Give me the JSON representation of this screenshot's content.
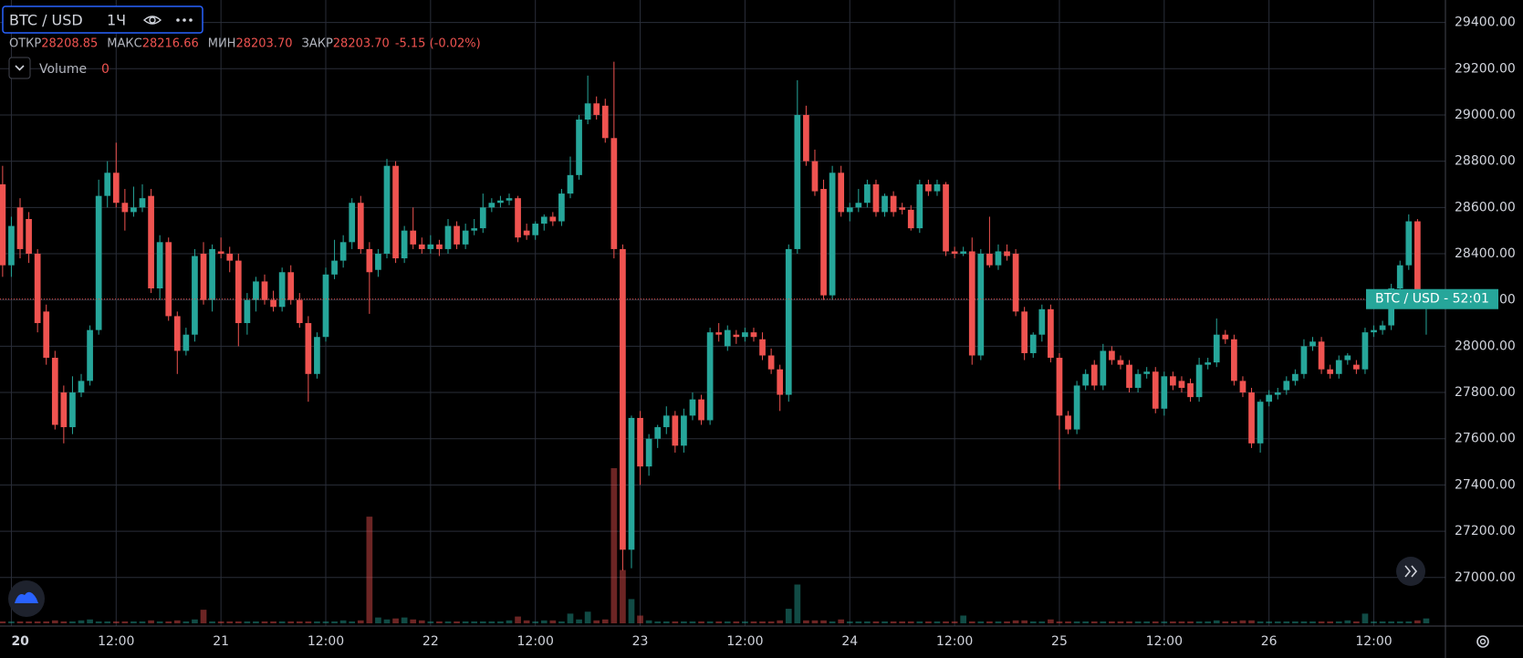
{
  "chart_data": {
    "type": "candlestick",
    "title": "BTC / USD",
    "interval": "1Ч",
    "legend_labels": [
      "ОТКР",
      "МАКС",
      "МИН",
      "ЗАКР"
    ],
    "legend_values": [
      "28208.85",
      "28216.66",
      "28203.70",
      "28203.70"
    ],
    "change": "-5.15 (-0.02%)",
    "volume_label": "Volume",
    "price_tag": "BTC / USD - 52:01",
    "up_color": "#26a69a",
    "down_color": "#ef5350",
    "grid": true,
    "ylim": [
      26790,
      29497
    ],
    "yticks": [
      {
        "value": 27000,
        "label": "27000.00"
      },
      {
        "value": 27200,
        "label": "27200.00"
      },
      {
        "value": 27400,
        "label": "27400.00"
      },
      {
        "value": 27600,
        "label": "27600.00"
      },
      {
        "value": 27800,
        "label": "27800.00"
      },
      {
        "value": 28000,
        "label": "28000.00"
      },
      {
        "value": 28200,
        "label": "28200.00"
      },
      {
        "value": 28400,
        "label": "28400.00"
      },
      {
        "value": 28600,
        "label": "28600.00"
      },
      {
        "value": 28800,
        "label": "28800.00"
      },
      {
        "value": 29000,
        "label": "29000.00"
      },
      {
        "value": 29200,
        "label": "29200.00"
      },
      {
        "value": 29400,
        "label": "29400.00"
      }
    ],
    "xlim": [
      -0.3,
      165.2
    ],
    "xticks": [
      {
        "value": 1,
        "label": "20"
      },
      {
        "value": 13,
        "label": "12:00"
      },
      {
        "value": 25,
        "label": "21"
      },
      {
        "value": 37,
        "label": "12:00"
      },
      {
        "value": 49,
        "label": "22"
      },
      {
        "value": 61,
        "label": "12:00"
      },
      {
        "value": 73,
        "label": "23"
      },
      {
        "value": 85,
        "label": "12:00"
      },
      {
        "value": 97,
        "label": "24"
      },
      {
        "value": 109,
        "label": "12:00"
      },
      {
        "value": 121,
        "label": "25"
      },
      {
        "value": 133,
        "label": "12:00"
      },
      {
        "value": 145,
        "label": "26"
      },
      {
        "value": 157,
        "label": "12:00"
      }
    ],
    "candles": [
      [
        28700,
        28780,
        28300,
        28350
      ],
      [
        28350,
        28560,
        28300,
        28520
      ],
      [
        28600,
        28640,
        28380,
        28420
      ],
      [
        28550,
        28580,
        28360,
        28400
      ],
      [
        28400,
        28420,
        28060,
        28100
      ],
      [
        28150,
        28180,
        27920,
        27950
      ],
      [
        27950,
        27980,
        27640,
        27660
      ],
      [
        27800,
        27830,
        27580,
        27650
      ],
      [
        27650,
        27870,
        27620,
        27800
      ],
      [
        27800,
        27880,
        27780,
        27850
      ],
      [
        27850,
        28090,
        27830,
        28070
      ],
      [
        28070,
        28720,
        28050,
        28650
      ],
      [
        28650,
        28800,
        28600,
        28750
      ],
      [
        28750,
        28880,
        28600,
        28620
      ],
      [
        28620,
        28680,
        28500,
        28580
      ],
      [
        28580,
        28690,
        28560,
        28600
      ],
      [
        28600,
        28700,
        28580,
        28640
      ],
      [
        28650,
        28680,
        28230,
        28250
      ],
      [
        28250,
        28480,
        28200,
        28450
      ],
      [
        28450,
        28470,
        28110,
        28130
      ],
      [
        28130,
        28150,
        27880,
        27980
      ],
      [
        27980,
        28080,
        27960,
        28050
      ],
      [
        28050,
        28420,
        28020,
        28390
      ],
      [
        28400,
        28450,
        28180,
        28200
      ],
      [
        28200,
        28440,
        28150,
        28420
      ],
      [
        28410,
        28470,
        28380,
        28400
      ],
      [
        28400,
        28430,
        28320,
        28370
      ],
      [
        28370,
        28400,
        28000,
        28100
      ],
      [
        28100,
        28230,
        28050,
        28200
      ],
      [
        28200,
        28300,
        28150,
        28280
      ],
      [
        28280,
        28310,
        28180,
        28200
      ],
      [
        28200,
        28240,
        28150,
        28170
      ],
      [
        28170,
        28340,
        28150,
        28320
      ],
      [
        28320,
        28350,
        28180,
        28200
      ],
      [
        28200,
        28230,
        28080,
        28100
      ],
      [
        28100,
        28130,
        27760,
        27880
      ],
      [
        27880,
        28060,
        27860,
        28040
      ],
      [
        28040,
        28340,
        28020,
        28310
      ],
      [
        28310,
        28460,
        28290,
        28370
      ],
      [
        28370,
        28480,
        28340,
        28450
      ],
      [
        28450,
        28640,
        28420,
        28620
      ],
      [
        28620,
        28650,
        28400,
        28420
      ],
      [
        28420,
        28450,
        28140,
        28320
      ],
      [
        28330,
        28420,
        28300,
        28400
      ],
      [
        28400,
        28810,
        28380,
        28780
      ],
      [
        28780,
        28800,
        28360,
        28380
      ],
      [
        28380,
        28520,
        28360,
        28500
      ],
      [
        28500,
        28600,
        28420,
        28440
      ],
      [
        28440,
        28470,
        28400,
        28420
      ],
      [
        28420,
        28480,
        28400,
        28440
      ],
      [
        28440,
        28460,
        28390,
        28420
      ],
      [
        28420,
        28550,
        28400,
        28520
      ],
      [
        28520,
        28540,
        28420,
        28440
      ],
      [
        28440,
        28530,
        28420,
        28500
      ],
      [
        28500,
        28550,
        28480,
        28510
      ],
      [
        28510,
        28660,
        28490,
        28600
      ],
      [
        28600,
        28640,
        28580,
        28620
      ],
      [
        28620,
        28650,
        28600,
        28630
      ],
      [
        28630,
        28660,
        28610,
        28640
      ],
      [
        28640,
        28650,
        28450,
        28470
      ],
      [
        28500,
        28530,
        28460,
        28480
      ],
      [
        28480,
        28540,
        28460,
        28530
      ],
      [
        28530,
        28570,
        28500,
        28560
      ],
      [
        28560,
        28580,
        28520,
        28540
      ],
      [
        28540,
        28680,
        28520,
        28660
      ],
      [
        28660,
        28820,
        28640,
        28740
      ],
      [
        28740,
        29000,
        28720,
        28980
      ],
      [
        28980,
        29170,
        28960,
        29050
      ],
      [
        29050,
        29080,
        28980,
        29000
      ],
      [
        29040,
        29070,
        28880,
        28900
      ],
      [
        28900,
        29230,
        28380,
        28420
      ],
      [
        28420,
        28440,
        27030,
        27120
      ],
      [
        27120,
        27700,
        27040,
        27690
      ],
      [
        27690,
        27720,
        27400,
        27480
      ],
      [
        27480,
        27620,
        27440,
        27600
      ],
      [
        27600,
        27660,
        27560,
        27650
      ],
      [
        27650,
        27740,
        27620,
        27700
      ],
      [
        27700,
        27720,
        27540,
        27570
      ],
      [
        27570,
        27730,
        27540,
        27700
      ],
      [
        27700,
        27800,
        27680,
        27770
      ],
      [
        27770,
        27790,
        27660,
        27680
      ],
      [
        27680,
        28080,
        27660,
        28060
      ],
      [
        28060,
        28100,
        28020,
        28050
      ],
      [
        28000,
        28090,
        27980,
        28070
      ],
      [
        28050,
        28070,
        28010,
        28040
      ],
      [
        28040,
        28080,
        28020,
        28060
      ],
      [
        28060,
        28080,
        28020,
        28040
      ],
      [
        28030,
        28060,
        27940,
        27960
      ],
      [
        27960,
        27990,
        27880,
        27900
      ],
      [
        27900,
        27920,
        27720,
        27790
      ],
      [
        27790,
        28440,
        27760,
        28420
      ],
      [
        28420,
        29150,
        28400,
        29000
      ],
      [
        29000,
        29040,
        28780,
        28800
      ],
      [
        28800,
        28850,
        28650,
        28670
      ],
      [
        28680,
        28720,
        28200,
        28220
      ],
      [
        28220,
        28780,
        28200,
        28750
      ],
      [
        28750,
        28780,
        28560,
        28580
      ],
      [
        28580,
        28620,
        28540,
        28600
      ],
      [
        28600,
        28680,
        28580,
        28620
      ],
      [
        28620,
        28720,
        28600,
        28700
      ],
      [
        28700,
        28720,
        28560,
        28580
      ],
      [
        28580,
        28660,
        28560,
        28650
      ],
      [
        28650,
        28670,
        28560,
        28580
      ],
      [
        28600,
        28620,
        28570,
        28590
      ],
      [
        28590,
        28610,
        28500,
        28510
      ],
      [
        28510,
        28720,
        28490,
        28700
      ],
      [
        28700,
        28720,
        28650,
        28670
      ],
      [
        28670,
        28720,
        28650,
        28700
      ],
      [
        28700,
        28710,
        28390,
        28410
      ],
      [
        28410,
        28430,
        28380,
        28400
      ],
      [
        28400,
        28430,
        28390,
        28410
      ],
      [
        28410,
        28470,
        27920,
        27960
      ],
      [
        27960,
        28420,
        27940,
        28400
      ],
      [
        28400,
        28560,
        28340,
        28350
      ],
      [
        28350,
        28440,
        28330,
        28410
      ],
      [
        28410,
        28440,
        28370,
        28390
      ],
      [
        28400,
        28420,
        28130,
        28150
      ],
      [
        28150,
        28170,
        27940,
        27970
      ],
      [
        27970,
        28060,
        27950,
        28050
      ],
      [
        28050,
        28180,
        28020,
        28160
      ],
      [
        28160,
        28180,
        27930,
        27950
      ],
      [
        27950,
        27970,
        27380,
        27700
      ],
      [
        27700,
        27720,
        27620,
        27640
      ],
      [
        27640,
        27850,
        27620,
        27830
      ],
      [
        27830,
        27900,
        27810,
        27880
      ],
      [
        27920,
        27940,
        27810,
        27830
      ],
      [
        27830,
        28010,
        27810,
        27980
      ],
      [
        27980,
        28000,
        27920,
        27940
      ],
      [
        27940,
        27960,
        27900,
        27920
      ],
      [
        27920,
        27940,
        27800,
        27820
      ],
      [
        27820,
        27900,
        27800,
        27880
      ],
      [
        27880,
        27910,
        27860,
        27890
      ],
      [
        27890,
        27910,
        27710,
        27730
      ],
      [
        27730,
        27890,
        27700,
        27870
      ],
      [
        27870,
        27890,
        27810,
        27830
      ],
      [
        27850,
        27870,
        27800,
        27820
      ],
      [
        27840,
        27860,
        27760,
        27780
      ],
      [
        27780,
        27950,
        27760,
        27920
      ],
      [
        27920,
        27950,
        27900,
        27930
      ],
      [
        27930,
        28120,
        27910,
        28050
      ],
      [
        28050,
        28070,
        28010,
        28030
      ],
      [
        28030,
        28050,
        27830,
        27850
      ],
      [
        27850,
        27870,
        27780,
        27800
      ],
      [
        27800,
        27820,
        27560,
        27580
      ],
      [
        27580,
        27770,
        27540,
        27760
      ],
      [
        27760,
        27810,
        27740,
        27790
      ],
      [
        27790,
        27820,
        27770,
        27800
      ],
      [
        27810,
        27870,
        27790,
        27850
      ],
      [
        27850,
        27900,
        27830,
        27880
      ],
      [
        27880,
        28030,
        27860,
        28000
      ],
      [
        28000,
        28040,
        27980,
        28020
      ],
      [
        28020,
        28040,
        27880,
        27900
      ],
      [
        27900,
        27920,
        27860,
        27880
      ],
      [
        27880,
        27960,
        27860,
        27940
      ],
      [
        27940,
        27970,
        27920,
        27960
      ],
      [
        27920,
        27940,
        27880,
        27900
      ],
      [
        27900,
        28080,
        27880,
        28060
      ],
      [
        28060,
        28090,
        28040,
        28070
      ],
      [
        28070,
        28110,
        28050,
        28090
      ],
      [
        28090,
        28270,
        28070,
        28250
      ],
      [
        28250,
        28370,
        28230,
        28350
      ],
      [
        28350,
        28570,
        28330,
        28540
      ],
      [
        28540,
        28550,
        28170,
        28190
      ],
      [
        28190,
        28230,
        28050,
        28208.85
      ],
      [
        28208.85,
        28216.66,
        28203.7,
        28203.7
      ]
    ],
    "volume": [
      2,
      2,
      2,
      2,
      2,
      2,
      3,
      2,
      2,
      3,
      4,
      2,
      2,
      2,
      2,
      2,
      2,
      3,
      2,
      2,
      3,
      2,
      4,
      14,
      2,
      2,
      2,
      2,
      2,
      2,
      2,
      2,
      2,
      2,
      2,
      2,
      2,
      2,
      2,
      3,
      2,
      3,
      110,
      6,
      4,
      5,
      6,
      4,
      3,
      2,
      2,
      2,
      2,
      2,
      2,
      2,
      2,
      2,
      3,
      7,
      3,
      2,
      3,
      3,
      2,
      10,
      4,
      12,
      3,
      4,
      160,
      55,
      25,
      8,
      3,
      2,
      2,
      2,
      2,
      2,
      2,
      2,
      2,
      2,
      2,
      2,
      2,
      2,
      2,
      3,
      15,
      40,
      3,
      3,
      3,
      2,
      4,
      2,
      2,
      2,
      2,
      2,
      2,
      2,
      2,
      2,
      2,
      2,
      2,
      2,
      8,
      2,
      2,
      2,
      2,
      2,
      3,
      3,
      2,
      2,
      4,
      2,
      2,
      2,
      2,
      2,
      2,
      2,
      2,
      2,
      2,
      2,
      2,
      2,
      2,
      2,
      2,
      2,
      2,
      3,
      2,
      2,
      3,
      3,
      2,
      2,
      2,
      2,
      2,
      2,
      2,
      2,
      2,
      2,
      3,
      2,
      10,
      2,
      2,
      2,
      2,
      2,
      3,
      5,
      0
    ]
  }
}
